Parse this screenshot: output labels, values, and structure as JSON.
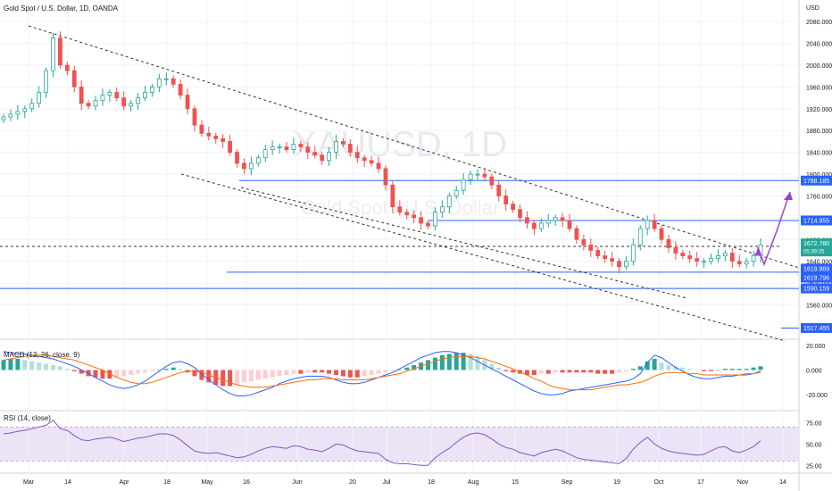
{
  "header": {
    "title": "Gold Spot / U.S. Dollar, 1D, OANDA",
    "currency": "USD",
    "watermark_symbol": "XAUUSD, 1D",
    "watermark_name": "Gold Spot / U.S. Dollar"
  },
  "chart_data": {
    "type": "candlestick",
    "y_ticks": [
      "2080.000",
      "2040.000",
      "2000.000",
      "1960.000",
      "1920.000",
      "1880.000",
      "1840.000",
      "1800.000",
      "1760.000",
      "1720.000",
      "1680.000",
      "1640.000",
      "1600.000",
      "1560.000"
    ],
    "y_range": [
      1510,
      2100
    ],
    "x_ticks": [
      "Mar",
      "14",
      "Apr",
      "18",
      "May",
      "16",
      "Jun",
      "20",
      "Jul",
      "18",
      "Aug",
      "15",
      "Sep",
      "19",
      "Oct",
      "17",
      "Nov",
      "14"
    ],
    "price_levels": [
      {
        "label": "1788.185",
        "value": 1788.185,
        "style": "blue"
      },
      {
        "label": "1714.955",
        "value": 1714.955,
        "style": "blue"
      },
      {
        "label": "1672.780",
        "value": 1672.78,
        "style": "green",
        "sub": "05:39:25"
      },
      {
        "label": "1619.969",
        "value": 1619.969,
        "style": "blue"
      },
      {
        "label": "1619.796",
        "value": 1619.796,
        "style": "blue"
      },
      {
        "label": "1590.159",
        "value": 1590.159,
        "style": "blue"
      },
      {
        "label": "1517.455",
        "value": 1517.455,
        "style": "blue"
      }
    ],
    "close_series": [
      1905,
      1910,
      1915,
      1920,
      1930,
      1950,
      1990,
      2050,
      2000,
      1990,
      1960,
      1930,
      1925,
      1935,
      1945,
      1950,
      1940,
      1925,
      1930,
      1940,
      1950,
      1960,
      1975,
      1975,
      1965,
      1945,
      1920,
      1890,
      1875,
      1870,
      1865,
      1860,
      1840,
      1820,
      1810,
      1820,
      1830,
      1845,
      1850,
      1850,
      1845,
      1855,
      1850,
      1840,
      1835,
      1825,
      1840,
      1860,
      1855,
      1840,
      1830,
      1825,
      1820,
      1810,
      1780,
      1740,
      1730,
      1725,
      1720,
      1710,
      1705,
      1730,
      1740,
      1760,
      1770,
      1790,
      1800,
      1800,
      1795,
      1780,
      1760,
      1745,
      1735,
      1720,
      1710,
      1700,
      1710,
      1715,
      1720,
      1715,
      1700,
      1680,
      1670,
      1660,
      1650,
      1645,
      1640,
      1630,
      1640,
      1670,
      1700,
      1715,
      1700,
      1680,
      1665,
      1655,
      1650,
      1645,
      1640,
      1640,
      1645,
      1650,
      1655,
      1640,
      1635,
      1640,
      1650,
      1670
    ],
    "macd": {
      "label": "MACD (12, 26, close, 9)",
      "ticks": [
        "20.000",
        "0.000",
        "-20.000"
      ],
      "range": [
        -30,
        22
      ],
      "hist": [
        8,
        9,
        9,
        8,
        7,
        6,
        5,
        4,
        3,
        1,
        -1,
        -3,
        -5,
        -6,
        -7,
        -7,
        -6,
        -5,
        -4,
        -3,
        -2,
        -1,
        0,
        1,
        2,
        1,
        -2,
        -5,
        -8,
        -10,
        -12,
        -13,
        -13,
        -12,
        -10,
        -9,
        -8,
        -7,
        -6,
        -5,
        -4,
        -3,
        -3,
        -2,
        -2,
        -2,
        -3,
        -4,
        -5,
        -6,
        -6,
        -5,
        -4,
        -3,
        -2,
        -1,
        0,
        2,
        4,
        6,
        8,
        10,
        12,
        13,
        14,
        14,
        13,
        11,
        8,
        5,
        2,
        -1,
        -2,
        -3,
        -4,
        -4,
        -3,
        -3,
        -2,
        -2,
        -2,
        -2,
        -2,
        -2,
        -3,
        -3,
        -3,
        -2,
        -1,
        1,
        3,
        7,
        9,
        6,
        4,
        3,
        2,
        1,
        0,
        -1,
        -1,
        0,
        1,
        1,
        1,
        1,
        2,
        3
      ],
      "macd_line": [
        15,
        14,
        13,
        13,
        12,
        11,
        10,
        9,
        7,
        5,
        3,
        0,
        -3,
        -6,
        -9,
        -12,
        -14,
        -15,
        -14,
        -12,
        -9,
        -5,
        -1,
        3,
        6,
        7,
        5,
        2,
        -3,
        -8,
        -12,
        -16,
        -19,
        -21,
        -21,
        -20,
        -18,
        -16,
        -14,
        -11,
        -9,
        -7,
        -6,
        -5,
        -5,
        -5,
        -6,
        -8,
        -10,
        -11,
        -11,
        -10,
        -8,
        -6,
        -4,
        -2,
        1,
        4,
        7,
        10,
        12,
        14,
        15,
        15,
        14,
        12,
        10,
        7,
        4,
        1,
        -2,
        -5,
        -8,
        -11,
        -14,
        -17,
        -19,
        -20,
        -20,
        -19,
        -17,
        -16,
        -15,
        -14,
        -13,
        -12,
        -11,
        -10,
        -9,
        -7,
        -3,
        6,
        12,
        10,
        6,
        2,
        -1,
        -4,
        -6,
        -7,
        -7,
        -6,
        -5,
        -5,
        -4,
        -4,
        -3,
        -1
      ],
      "signal_line": [
        8,
        9,
        10,
        11,
        12,
        12,
        12,
        11,
        10,
        9,
        8,
        6,
        4,
        2,
        0,
        -3,
        -6,
        -8,
        -10,
        -11,
        -11,
        -10,
        -8,
        -6,
        -4,
        -2,
        -1,
        -1,
        -2,
        -4,
        -6,
        -8,
        -10,
        -12,
        -13,
        -14,
        -14,
        -14,
        -13,
        -12,
        -11,
        -10,
        -9,
        -8,
        -8,
        -7,
        -7,
        -7,
        -8,
        -8,
        -8,
        -8,
        -7,
        -6,
        -5,
        -4,
        -3,
        -1,
        1,
        3,
        5,
        7,
        9,
        10,
        11,
        11,
        11,
        10,
        9,
        7,
        5,
        3,
        1,
        -2,
        -4,
        -7,
        -9,
        -12,
        -14,
        -15,
        -16,
        -16,
        -16,
        -16,
        -15,
        -14,
        -13,
        -12,
        -12,
        -11,
        -10,
        -8,
        -5,
        -3,
        -2,
        -2,
        -2,
        -3,
        -3,
        -4,
        -4,
        -4,
        -4,
        -4,
        -4,
        -3,
        -3,
        -2
      ]
    },
    "rsi": {
      "label": "RSI (14, close)",
      "ticks": [
        "75.00",
        "50.00",
        "25.00"
      ],
      "range": [
        18,
        85
      ],
      "band": [
        30,
        70
      ],
      "values": [
        62,
        63,
        65,
        66,
        68,
        70,
        72,
        78,
        68,
        66,
        60,
        55,
        54,
        56,
        57,
        58,
        56,
        53,
        55,
        57,
        58,
        60,
        62,
        62,
        60,
        55,
        48,
        42,
        40,
        39,
        40,
        38,
        36,
        34,
        35,
        38,
        42,
        45,
        47,
        46,
        45,
        48,
        47,
        44,
        43,
        41,
        45,
        50,
        49,
        45,
        42,
        41,
        40,
        39,
        32,
        28,
        27,
        27,
        26,
        25,
        25,
        34,
        40,
        45,
        52,
        58,
        62,
        63,
        61,
        56,
        50,
        46,
        44,
        40,
        38,
        36,
        40,
        42,
        44,
        42,
        38,
        34,
        32,
        31,
        30,
        29,
        28,
        27,
        33,
        44,
        52,
        58,
        50,
        45,
        42,
        40,
        39,
        38,
        37,
        38,
        42,
        46,
        47,
        42,
        40,
        43,
        47,
        54
      ]
    },
    "annotations": [
      "purple projection arrows up to 1788.185"
    ]
  }
}
